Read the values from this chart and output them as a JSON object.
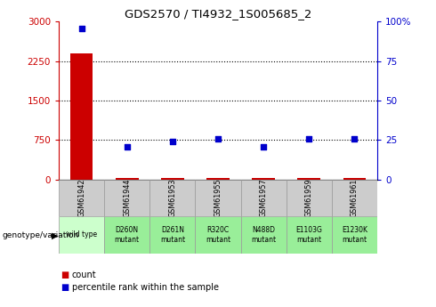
{
  "title": "GDS2570 / TI4932_1S005685_2",
  "samples": [
    "GSM61942",
    "GSM61944",
    "GSM61953",
    "GSM61955",
    "GSM61957",
    "GSM61959",
    "GSM61961"
  ],
  "genotypes": [
    "wild type",
    "D260N\nmutant",
    "D261N\nmutant",
    "R320C\nmutant",
    "N488D\nmutant",
    "E1103G\nmutant",
    "E1230K\nmutant"
  ],
  "count_values": [
    2400,
    25,
    25,
    25,
    25,
    30,
    25
  ],
  "percentile_values": [
    2870,
    620,
    730,
    780,
    630,
    780,
    780
  ],
  "count_color": "#cc0000",
  "percentile_color": "#0000cc",
  "left_ylim": [
    0,
    3000
  ],
  "left_yticks": [
    0,
    750,
    1500,
    2250,
    3000
  ],
  "left_yticklabels": [
    "0",
    "750",
    "1500",
    "2250",
    "3000"
  ],
  "right_yticks": [
    0,
    750,
    1500,
    2250,
    3000
  ],
  "right_yticklabels": [
    "0",
    "25",
    "50",
    "75",
    "100%"
  ],
  "hline_values": [
    750,
    1500,
    2250
  ],
  "genotype_bg_wt": "#ccffcc",
  "genotype_bg_mutant": "#99ee99",
  "sample_bg": "#cccccc",
  "bar_width": 0.5,
  "legend_items": [
    "count",
    "percentile rank within the sample"
  ],
  "legend_colors": [
    "#cc0000",
    "#0000cc"
  ]
}
